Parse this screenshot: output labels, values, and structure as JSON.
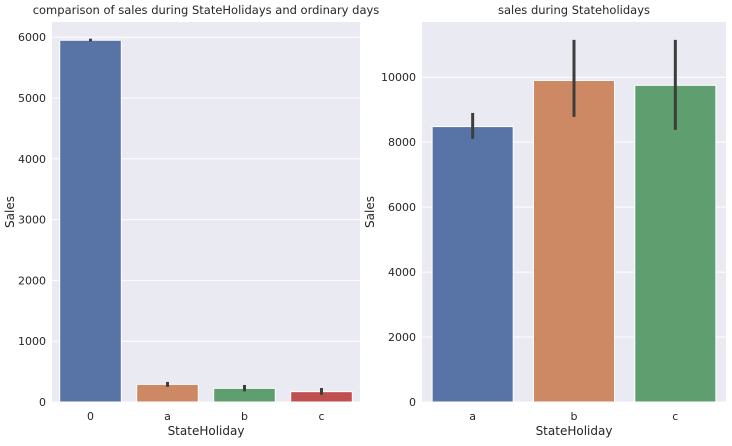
{
  "chart_data": [
    {
      "type": "bar",
      "title": "comparison of sales during StateHolidays and ordinary days",
      "xlabel": "StateHoliday",
      "ylabel": "Sales",
      "categories": [
        "0",
        "a",
        "b",
        "c"
      ],
      "values": [
        5950,
        290,
        225,
        170
      ],
      "error_low": [
        5930,
        250,
        175,
        120
      ],
      "error_high": [
        5975,
        330,
        280,
        230
      ],
      "ylim": [
        0,
        6250
      ],
      "yticks": [
        0,
        1000,
        2000,
        3000,
        4000,
        5000,
        6000
      ],
      "colors": [
        "#5874a6",
        "#cc8963",
        "#5f9e6e",
        "#c0504f"
      ],
      "grid": true
    },
    {
      "type": "bar",
      "title": "sales during Stateholidays",
      "xlabel": "StateHoliday",
      "ylabel": "Sales",
      "categories": [
        "a",
        "b",
        "c"
      ],
      "values": [
        8480,
        9900,
        9750
      ],
      "error_low": [
        8100,
        8780,
        8380
      ],
      "error_high": [
        8900,
        11150,
        11150
      ],
      "ylim": [
        0,
        11700
      ],
      "yticks": [
        0,
        2000,
        4000,
        6000,
        8000,
        10000
      ],
      "colors": [
        "#5874a6",
        "#cc8963",
        "#5f9e6e"
      ],
      "grid": true
    }
  ]
}
